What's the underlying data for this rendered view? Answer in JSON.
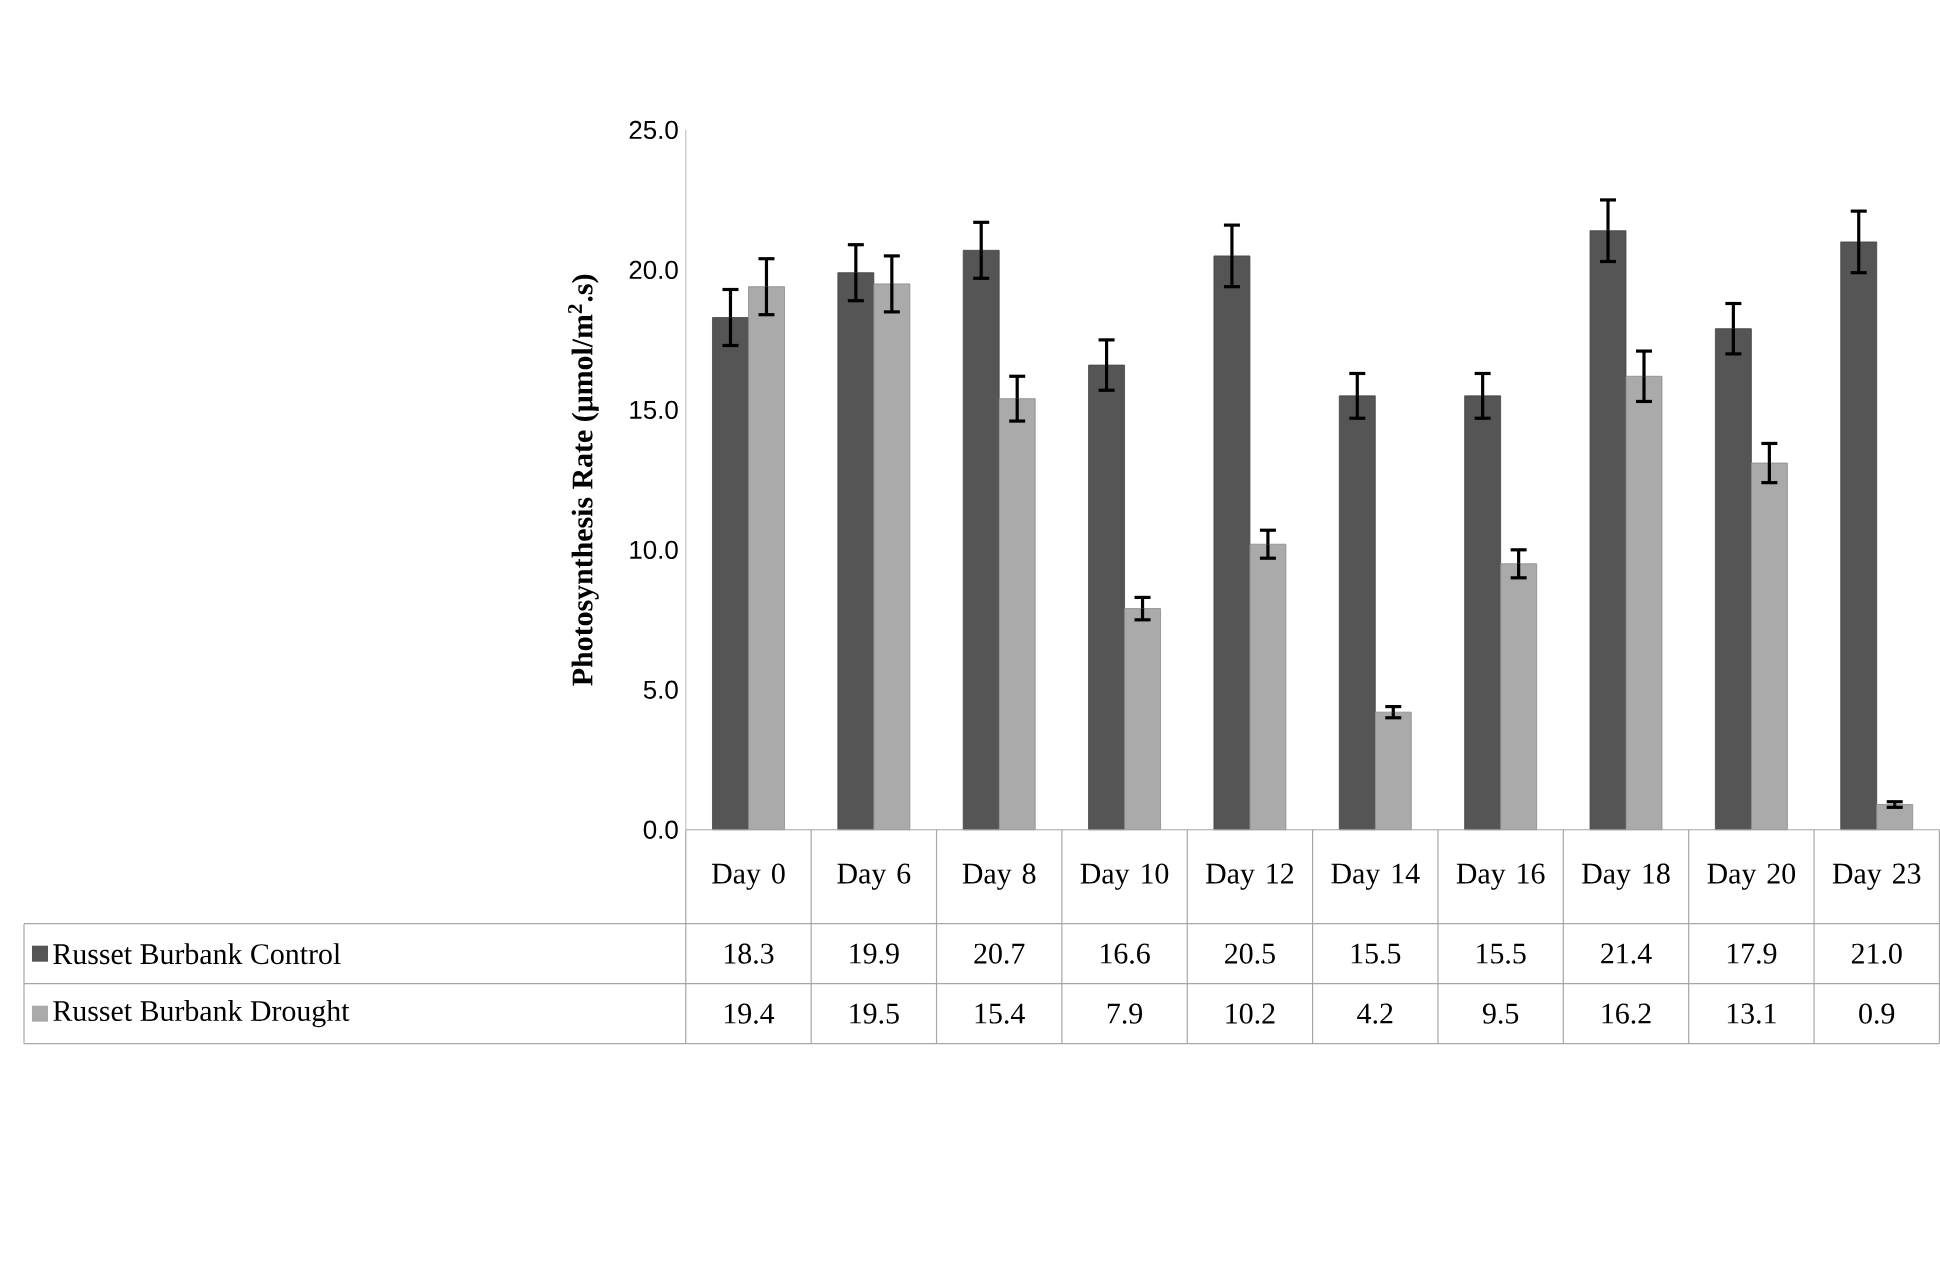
{
  "chart_data": {
    "type": "bar",
    "ylabel": "Photosynthesis Rate (μmol/m$^{2}$.s)",
    "categories": [
      "Day 0",
      "Day 6",
      "Day 8",
      "Day 10",
      "Day 12",
      "Day 14",
      "Day 16",
      "Day 18",
      "Day 20",
      "Day 23"
    ],
    "series": [
      {
        "name": "Russet Burbank Control",
        "color": "#555555",
        "values": [
          18.3,
          19.9,
          20.7,
          16.6,
          20.5,
          15.5,
          15.5,
          21.4,
          17.9,
          21.0
        ],
        "value_labels": [
          "18.3",
          "19.9",
          "20.7",
          "16.6",
          "20.5",
          "15.5",
          "15.5",
          "21.4",
          "17.9",
          "21.0"
        ],
        "errors": [
          1.0,
          1.0,
          1.0,
          0.9,
          1.1,
          0.8,
          0.8,
          1.1,
          0.9,
          1.1
        ]
      },
      {
        "name": "Russet Burbank Drought",
        "color": "#aaaaaa",
        "values": [
          19.4,
          19.5,
          15.4,
          7.9,
          10.2,
          4.2,
          9.5,
          16.2,
          13.1,
          0.9
        ],
        "value_labels": [
          "19.4",
          "19.5",
          "15.4",
          "7.9",
          "10.2",
          "4.2",
          "9.5",
          "16.2",
          "13.1",
          "0.9"
        ],
        "errors": [
          1.0,
          1.0,
          0.8,
          0.4,
          0.5,
          0.2,
          0.5,
          0.9,
          0.7,
          0.1
        ]
      }
    ],
    "ylim": [
      0,
      25
    ],
    "yticks": [
      {
        "value": 0,
        "label": "0.0"
      },
      {
        "value": 5,
        "label": "5.0"
      },
      {
        "value": 10,
        "label": "10.0"
      },
      {
        "value": 15,
        "label": "15.0"
      },
      {
        "value": 20,
        "label": "20.0"
      },
      {
        "value": 25,
        "label": "25.0"
      }
    ],
    "grid": false,
    "legend": "bottom"
  }
}
